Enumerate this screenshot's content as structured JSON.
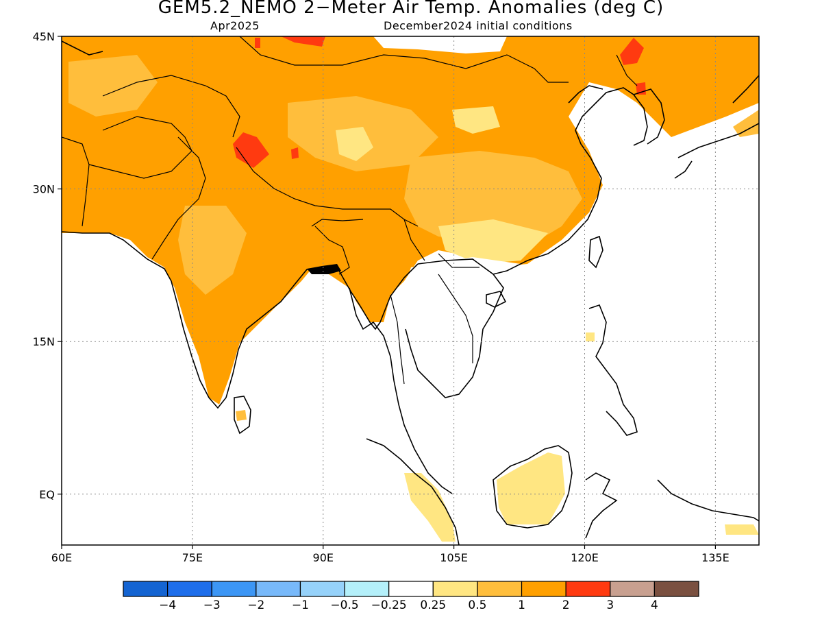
{
  "title": "GEM5.2_NEMO 2−Meter Air Temp. Anomalies (deg C)",
  "subtitle_left": "Apr2025",
  "subtitle_right": "December2024 initial conditions",
  "map": {
    "lon_range": [
      60,
      140
    ],
    "lat_range": [
      -5,
      45
    ],
    "lon_ticks": [
      {
        "value": 60,
        "label": "60E"
      },
      {
        "value": 75,
        "label": "75E"
      },
      {
        "value": 90,
        "label": "90E"
      },
      {
        "value": 105,
        "label": "105E"
      },
      {
        "value": 120,
        "label": "120E"
      },
      {
        "value": 135,
        "label": "135E"
      }
    ],
    "lat_ticks": [
      {
        "value": 45,
        "label": "45N"
      },
      {
        "value": 30,
        "label": "30N"
      },
      {
        "value": 15,
        "label": "15N"
      },
      {
        "value": 0,
        "label": "EQ"
      }
    ],
    "grid": "dotted",
    "regions": [
      {
        "name": "Central Asia / Pakistan / W China",
        "anomaly_class": "1 to 2",
        "color": "#ffa000"
      },
      {
        "name": "India",
        "anomaly_class": "1 to 2",
        "color": "#ffa000"
      },
      {
        "name": "Tibetan Plateau / Mongolia",
        "anomaly_class": "1 to 2",
        "color": "#ffa000"
      },
      {
        "name": "Western Tibet hotspot",
        "anomaly_class": "2 to 3",
        "color": "#ff3a10"
      },
      {
        "name": "Northeast China / Korea",
        "anomaly_class": "1 to 2",
        "color": "#ffa000"
      },
      {
        "name": "Southern China",
        "anomaly_class": "0.5 to 1",
        "color": "#ffbe3c"
      },
      {
        "name": "South China coast",
        "anomaly_class": "0.25 to 0.5",
        "color": "#ffe682"
      },
      {
        "name": "Borneo / Sumatra / Malaya",
        "anomaly_class": "0.25 to 0.5",
        "color": "#ffe682"
      },
      {
        "name": "Southeast Asia mainland",
        "anomaly_class": "-0.25 to 0.25",
        "color": "#ffffff"
      }
    ]
  },
  "colorbar": {
    "colors": [
      "#1464d2",
      "#1e6eeb",
      "#3c96f5",
      "#78b9fa",
      "#96d2fa",
      "#b4f0fa",
      "#ffffff",
      "#ffe682",
      "#ffbe3c",
      "#ffa000",
      "#ff3a10",
      "#c8a090",
      "#7a5040"
    ],
    "labels": [
      "−4",
      "−3",
      "−2",
      "−1",
      "−0.5",
      "−0.25",
      "0.25",
      "0.5",
      "1",
      "2",
      "3",
      "4"
    ]
  }
}
